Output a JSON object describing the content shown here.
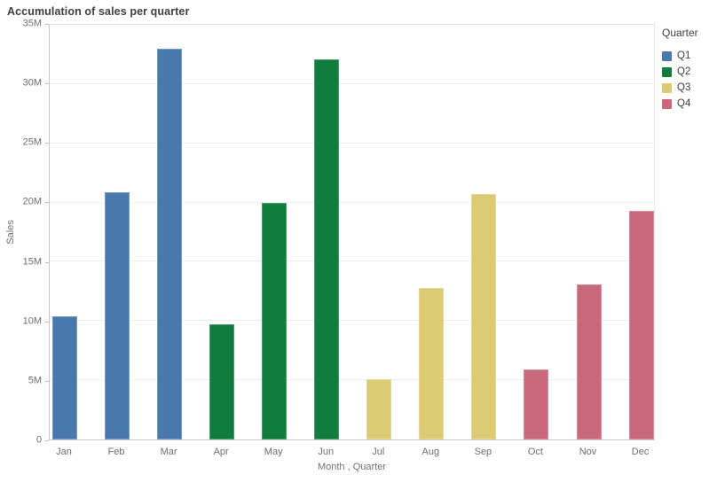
{
  "header": {
    "title": "Accumulation of sales per quarter"
  },
  "legend": {
    "title": "Quarter",
    "position": "top-right",
    "items": [
      {
        "label": "Q1",
        "color": "#4878ac"
      },
      {
        "label": "Q2",
        "color": "#117d3c"
      },
      {
        "label": "Q3",
        "color": "#dbcb75"
      },
      {
        "label": "Q4",
        "color": "#c9687a"
      }
    ]
  },
  "chart_data": {
    "type": "bar",
    "title": "Accumulation of sales per quarter",
    "xlabel": "Month , Quarter",
    "ylabel": "Sales",
    "unit": "M",
    "ylim_m": [
      0,
      35
    ],
    "gridline_step_m": 5,
    "grid": true,
    "legend_position": "top-right",
    "categories": [
      "Jan",
      "Feb",
      "Mar",
      "Apr",
      "May",
      "Jun",
      "Jul",
      "Aug",
      "Sep",
      "Oct",
      "Nov",
      "Dec"
    ],
    "y_ticks": [
      {
        "label": "35M",
        "value_m": 35
      },
      {
        "label": "30M",
        "value_m": 30
      },
      {
        "label": "25M",
        "value_m": 25
      },
      {
        "label": "20M",
        "value_m": 20
      },
      {
        "label": "15M",
        "value_m": 15
      },
      {
        "label": "10M",
        "value_m": 10
      },
      {
        "label": "5M",
        "value_m": 5
      },
      {
        "label": "0",
        "value_m": 0
      }
    ],
    "bars": [
      {
        "month": "Jan",
        "quarter": "Q1",
        "value_m": 10.4
      },
      {
        "month": "Feb",
        "quarter": "Q1",
        "value_m": 20.9
      },
      {
        "month": "Mar",
        "quarter": "Q1",
        "value_m": 33.0
      },
      {
        "month": "Apr",
        "quarter": "Q2",
        "value_m": 9.7
      },
      {
        "month": "May",
        "quarter": "Q2",
        "value_m": 20.0
      },
      {
        "month": "Jun",
        "quarter": "Q2",
        "value_m": 32.1
      },
      {
        "month": "Jul",
        "quarter": "Q3",
        "value_m": 5.1
      },
      {
        "month": "Aug",
        "quarter": "Q3",
        "value_m": 12.8
      },
      {
        "month": "Sep",
        "quarter": "Q3",
        "value_m": 20.7
      },
      {
        "month": "Oct",
        "quarter": "Q4",
        "value_m": 5.9
      },
      {
        "month": "Nov",
        "quarter": "Q4",
        "value_m": 13.1
      },
      {
        "month": "Dec",
        "quarter": "Q4",
        "value_m": 19.3
      }
    ],
    "series": [
      {
        "name": "Q1",
        "months": [
          "Jan",
          "Feb",
          "Mar"
        ],
        "values_m": [
          10.4,
          20.9,
          33.0
        ]
      },
      {
        "name": "Q2",
        "months": [
          "Apr",
          "May",
          "Jun"
        ],
        "values_m": [
          9.7,
          20.0,
          32.1
        ]
      },
      {
        "name": "Q3",
        "months": [
          "Jul",
          "Aug",
          "Sep"
        ],
        "values_m": [
          5.1,
          12.8,
          20.7
        ]
      },
      {
        "name": "Q4",
        "months": [
          "Oct",
          "Nov",
          "Dec"
        ],
        "values_m": [
          5.9,
          13.1,
          19.3
        ]
      }
    ]
  }
}
